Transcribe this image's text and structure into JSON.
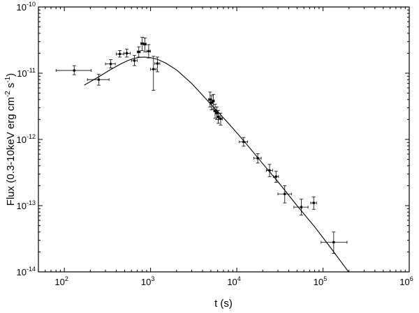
{
  "chart_data": {
    "type": "scatter",
    "xscale": "log",
    "yscale": "log",
    "xlim": [
      50,
      1000000
    ],
    "ylim": [
      1e-14,
      1e-10
    ],
    "xlabel": "t (s)",
    "ylabel": {
      "main": "Flux (0.3-10keV erg cm",
      "sup1": "-2",
      "mid": " s",
      "sup2": "-1",
      "end": ")"
    },
    "x_ticks": [
      {
        "value": 100,
        "base": "10",
        "exp": "2"
      },
      {
        "value": 1000,
        "base": "10",
        "exp": "3"
      },
      {
        "value": 10000,
        "base": "10",
        "exp": "4"
      },
      {
        "value": 100000,
        "base": "10",
        "exp": "5"
      },
      {
        "value": 1000000,
        "base": "10",
        "exp": "6"
      }
    ],
    "y_ticks": [
      {
        "value": 1e-14,
        "base": "10",
        "exp": "-14"
      },
      {
        "value": 1e-13,
        "base": "10",
        "exp": "-13"
      },
      {
        "value": 1e-12,
        "base": "10",
        "exp": "-12"
      },
      {
        "value": 1e-11,
        "base": "10",
        "exp": "-11"
      },
      {
        "value": 1e-10,
        "base": "10",
        "exp": "-10"
      }
    ],
    "grid": false,
    "series": [
      {
        "kind": "points-with-errorbars",
        "points": [
          {
            "x": 130,
            "y": 1.1e-11,
            "xlo": 80,
            "xhi": 205,
            "ylo": 9.5e-12,
            "yhi": 1.3e-11
          },
          {
            "x": 250,
            "y": 8e-12,
            "xlo": 185,
            "xhi": 330,
            "ylo": 6.6e-12,
            "yhi": 9.6e-12
          },
          {
            "x": 345,
            "y": 1.38e-11,
            "xlo": 300,
            "xhi": 390,
            "ylo": 1.2e-11,
            "yhi": 1.6e-11
          },
          {
            "x": 440,
            "y": 1.95e-11,
            "xlo": 400,
            "xhi": 490,
            "ylo": 1.75e-11,
            "yhi": 2.2e-11
          },
          {
            "x": 530,
            "y": 2e-11,
            "xlo": 490,
            "xhi": 580,
            "ylo": 1.75e-11,
            "yhi": 2.3e-11
          },
          {
            "x": 650,
            "y": 1.55e-11,
            "xlo": 600,
            "xhi": 700,
            "ylo": 1.3e-11,
            "yhi": 1.85e-11
          },
          {
            "x": 730,
            "y": 2.1e-11,
            "xlo": 700,
            "xhi": 760,
            "ylo": 1.75e-11,
            "yhi": 2.5e-11
          },
          {
            "x": 800,
            "y": 2.8e-11,
            "xlo": 770,
            "xhi": 830,
            "ylo": 2.2e-11,
            "yhi": 3.5e-11
          },
          {
            "x": 860,
            "y": 2.75e-11,
            "xlo": 830,
            "xhi": 890,
            "ylo": 2.1e-11,
            "yhi": 3.4e-11
          },
          {
            "x": 950,
            "y": 2.15e-11,
            "xlo": 900,
            "xhi": 1000,
            "ylo": 1.7e-11,
            "yhi": 2.7e-11
          },
          {
            "x": 1080,
            "y": 1.15e-11,
            "xlo": 1000,
            "xhi": 1160,
            "ylo": 5.5e-12,
            "yhi": 1.8e-11
          },
          {
            "x": 1200,
            "y": 1.4e-11,
            "xlo": 1120,
            "xhi": 1280,
            "ylo": 1.05e-11,
            "yhi": 1.75e-11
          },
          {
            "x": 4900,
            "y": 4e-12,
            "xlo": 4700,
            "xhi": 5100,
            "ylo": 3.1e-12,
            "yhi": 5.2e-12
          },
          {
            "x": 5100,
            "y": 3.6e-12,
            "xlo": 4950,
            "xhi": 5250,
            "ylo": 2.8e-12,
            "yhi": 4.6e-12
          },
          {
            "x": 5350,
            "y": 3.8e-12,
            "xlo": 5200,
            "xhi": 5500,
            "ylo": 2.9e-12,
            "yhi": 4.8e-12
          },
          {
            "x": 5600,
            "y": 2.7e-12,
            "xlo": 5400,
            "xhi": 5800,
            "ylo": 2.1e-12,
            "yhi": 3.4e-12
          },
          {
            "x": 5850,
            "y": 2.5e-12,
            "xlo": 5650,
            "xhi": 6050,
            "ylo": 2e-12,
            "yhi": 3.1e-12
          },
          {
            "x": 6100,
            "y": 2.2e-12,
            "xlo": 5900,
            "xhi": 6300,
            "ylo": 1.75e-12,
            "yhi": 2.75e-12
          },
          {
            "x": 6500,
            "y": 2.05e-12,
            "xlo": 6200,
            "xhi": 6800,
            "ylo": 1.65e-12,
            "yhi": 2.5e-12
          },
          {
            "x": 12000,
            "y": 9.2e-13,
            "xlo": 10700,
            "xhi": 13300,
            "ylo": 7.9e-13,
            "yhi": 1.07e-12
          },
          {
            "x": 17500,
            "y": 5.2e-13,
            "xlo": 15800,
            "xhi": 19200,
            "ylo": 4.4e-13,
            "yhi": 6.1e-13
          },
          {
            "x": 24000,
            "y": 3.4e-13,
            "xlo": 22000,
            "xhi": 26000,
            "ylo": 2.75e-13,
            "yhi": 4.2e-13
          },
          {
            "x": 28500,
            "y": 2.75e-13,
            "xlo": 26500,
            "xhi": 30500,
            "ylo": 2.25e-13,
            "yhi": 3.3e-13
          },
          {
            "x": 36000,
            "y": 1.5e-13,
            "xlo": 30000,
            "xhi": 43000,
            "ylo": 1.1e-13,
            "yhi": 2e-13
          },
          {
            "x": 56000,
            "y": 9.5e-14,
            "xlo": 46000,
            "xhi": 67000,
            "ylo": 7.2e-14,
            "yhi": 1.25e-13
          },
          {
            "x": 78000,
            "y": 1.1e-13,
            "xlo": 72000,
            "xhi": 84000,
            "ylo": 8.8e-14,
            "yhi": 1.35e-13
          },
          {
            "x": 133000,
            "y": 2.8e-14,
            "xlo": 95000,
            "xhi": 190000,
            "ylo": 1.9e-14,
            "yhi": 4e-14
          }
        ]
      },
      {
        "kind": "model-curve",
        "x": [
          170,
          250,
          350,
          450,
          550,
          650,
          750,
          850,
          1000,
          1200,
          1500,
          2000,
          3000,
          5000,
          8000,
          12000,
          20000,
          30000,
          50000,
          80000,
          120000,
          160000,
          200000
        ],
        "y": [
          6.6e-12,
          8.8e-12,
          1.15e-11,
          1.38e-11,
          1.56e-11,
          1.68e-11,
          1.74e-11,
          1.75e-11,
          1.72e-11,
          1.62e-11,
          1.42e-11,
          1.12e-11,
          7e-12,
          3.4e-12,
          1.75e-12,
          9.6e-13,
          4.3e-13,
          2.3e-13,
          1e-13,
          4.8e-14,
          2.4e-14,
          1.45e-14,
          9.8e-15
        ]
      }
    ]
  }
}
